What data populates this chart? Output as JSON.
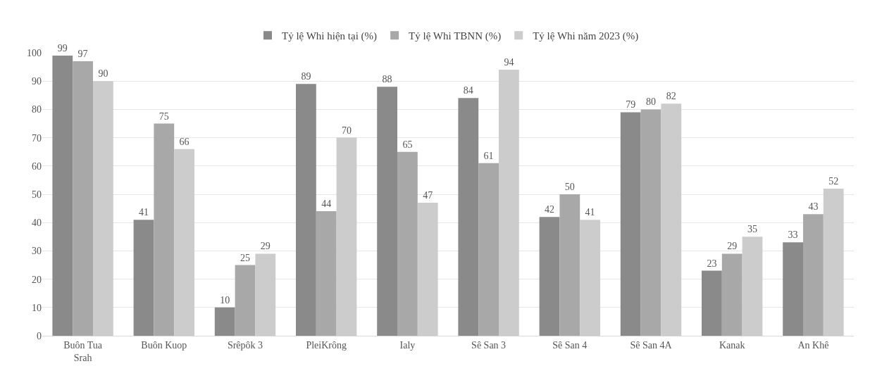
{
  "chart_data": {
    "type": "bar",
    "categories": [
      "Buôn Tua Srah",
      "Buôn Kuop",
      "Srêpôk 3",
      "PleiKrông",
      "Ialy",
      "Sê San 3",
      "Sê San 4",
      "Sê San 4A",
      "Kanak",
      "An Khê"
    ],
    "series": [
      {
        "name": "Tỷ lệ Whi hiện tại (%)",
        "color": "#8a8a8a",
        "values": [
          99,
          41,
          10,
          89,
          88,
          84,
          42,
          79,
          23,
          33
        ]
      },
      {
        "name": "Tỷ lệ Whi TBNN (%)",
        "color": "#a8a8a8",
        "values": [
          97,
          75,
          25,
          44,
          65,
          61,
          50,
          80,
          29,
          43
        ]
      },
      {
        "name": "Tỷ lệ Whi năm 2023 (%)",
        "color": "#cccccc",
        "values": [
          90,
          66,
          29,
          70,
          47,
          94,
          41,
          82,
          35,
          52
        ]
      }
    ],
    "ylim": [
      0,
      100
    ],
    "yticks": [
      0,
      10,
      20,
      30,
      40,
      50,
      60,
      70,
      80,
      90,
      100
    ],
    "grid": "y",
    "legend": "top",
    "data_labels": true
  }
}
